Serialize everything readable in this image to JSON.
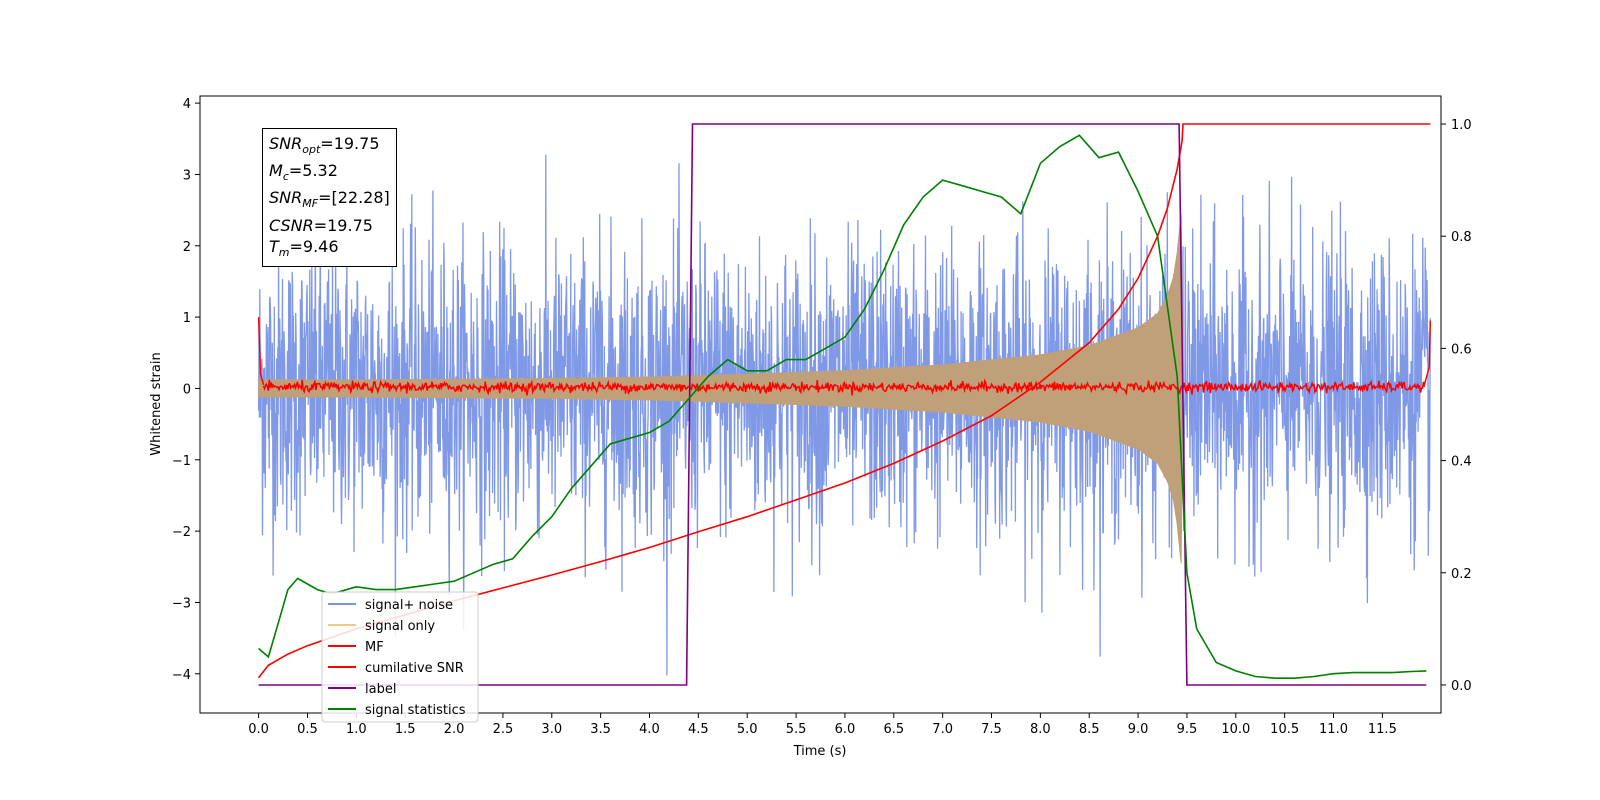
{
  "chart_data": {
    "type": "line",
    "xlabel": "Time (s)",
    "ylabel": "Whitened strain",
    "xlim": [
      -0.6,
      12.1
    ],
    "ylim": [
      -4.55,
      4.1
    ],
    "y2lim": [
      -0.05,
      1.05
    ],
    "x_ticks": [
      "0.0",
      "0.5",
      "1.0",
      "1.5",
      "2.0",
      "2.5",
      "3.0",
      "3.5",
      "4.0",
      "4.5",
      "5.0",
      "5.5",
      "6.0",
      "6.5",
      "7.0",
      "7.5",
      "8.0",
      "8.5",
      "9.0",
      "9.5",
      "10.0",
      "10.5",
      "11.0",
      "11.5"
    ],
    "y_ticks": [
      "4",
      "3",
      "2",
      "1",
      "0",
      "−1",
      "−2",
      "−3",
      "−4"
    ],
    "y2_ticks": [
      "1.0",
      "0.8",
      "0.6",
      "0.4",
      "0.2",
      "0.0"
    ],
    "annotations": {
      "snr_opt": {
        "sym": "SNR",
        "sub": "opt",
        "val": "=19.75"
      },
      "mc": {
        "sym": "M",
        "sub": "c",
        "val": "=5.32"
      },
      "snr_mf": {
        "sym": "SNR",
        "sub": "MF",
        "val": "=[22.28]"
      },
      "csnr": {
        "sym": "CSNR",
        "sub": "",
        "val": "=19.75"
      },
      "tm": {
        "sym": "T",
        "sub": "m",
        "val": "=9.46"
      }
    },
    "legend": {
      "placement": "lower-left",
      "entries": [
        {
          "label": "signal+ noise",
          "color": "#7994e6"
        },
        {
          "label": "signal only",
          "color": "#f5c785"
        },
        {
          "label": "MF",
          "color": "#ff0000"
        },
        {
          "label": "cumilative SNR",
          "color": "#ff0000"
        },
        {
          "label": "label",
          "color": "#800080"
        },
        {
          "label": "signal statistics",
          "color": "#008000"
        }
      ]
    },
    "series": [
      {
        "name": "signal+ noise",
        "color": "#7994e6",
        "axis": "left",
        "x_range": [
          0.0,
          11.99
        ],
        "envelope_std": 1.0
      },
      {
        "name": "signal only",
        "color": "#c0a078",
        "axis": "left",
        "chirp_end": 9.46,
        "envelope": [
          [
            0.0,
            0.12
          ],
          [
            1.0,
            0.12
          ],
          [
            2.0,
            0.13
          ],
          [
            3.0,
            0.14
          ],
          [
            4.0,
            0.16
          ],
          [
            5.0,
            0.2
          ],
          [
            6.0,
            0.25
          ],
          [
            7.0,
            0.33
          ],
          [
            8.0,
            0.47
          ],
          [
            8.5,
            0.6
          ],
          [
            9.0,
            0.85
          ],
          [
            9.2,
            1.05
          ],
          [
            9.3,
            1.3
          ],
          [
            9.36,
            1.55
          ],
          [
            9.4,
            1.9
          ],
          [
            9.44,
            2.45
          ]
        ]
      },
      {
        "name": "MF",
        "color": "#ff0000",
        "axis": "left",
        "x": [
          0.0,
          0.02,
          0.05,
          11.93,
          11.98,
          11.99
        ],
        "y": [
          1.0,
          0.2,
          0.05,
          0.05,
          0.3,
          0.95
        ]
      },
      {
        "name": "cumilative SNR",
        "color": "#ff0000",
        "axis": "right",
        "x": [
          0.0,
          0.1,
          0.3,
          0.5,
          1.0,
          1.5,
          2.0,
          2.5,
          3.0,
          3.5,
          4.0,
          4.5,
          5.0,
          5.5,
          6.0,
          6.5,
          7.0,
          7.5,
          8.0,
          8.5,
          8.8,
          9.0,
          9.2,
          9.3,
          9.4,
          9.45,
          9.46,
          11.99
        ],
        "y": [
          0.013,
          0.035,
          0.055,
          0.07,
          0.1,
          0.125,
          0.15,
          0.173,
          0.196,
          0.22,
          0.245,
          0.273,
          0.3,
          0.33,
          0.36,
          0.395,
          0.435,
          0.48,
          0.54,
          0.61,
          0.67,
          0.725,
          0.8,
          0.85,
          0.92,
          0.97,
          1.0,
          1.0
        ]
      },
      {
        "name": "label",
        "color": "#800080",
        "axis": "right",
        "x": [
          0.0,
          4.38,
          4.44,
          9.42,
          9.5,
          11.95
        ],
        "y": [
          0.0,
          0.0,
          1.0,
          1.0,
          0.0,
          0.0
        ]
      },
      {
        "name": "signal statistics",
        "color": "#008000",
        "axis": "right",
        "x": [
          0.0,
          0.1,
          0.2,
          0.3,
          0.4,
          0.5,
          0.6,
          0.7,
          0.8,
          1.0,
          1.2,
          1.4,
          1.6,
          1.8,
          2.0,
          2.2,
          2.4,
          2.6,
          2.8,
          3.0,
          3.2,
          3.4,
          3.6,
          3.8,
          4.0,
          4.2,
          4.4,
          4.6,
          4.8,
          5.0,
          5.2,
          5.4,
          5.6,
          5.8,
          6.0,
          6.2,
          6.4,
          6.6,
          6.8,
          7.0,
          7.2,
          7.4,
          7.6,
          7.8,
          8.0,
          8.2,
          8.4,
          8.6,
          8.8,
          9.0,
          9.2,
          9.4,
          9.5,
          9.6,
          9.8,
          10.0,
          10.2,
          10.4,
          10.6,
          10.8,
          11.0,
          11.2,
          11.4,
          11.6,
          11.8,
          11.95
        ],
        "y": [
          0.065,
          0.05,
          0.11,
          0.17,
          0.19,
          0.18,
          0.17,
          0.165,
          0.165,
          0.175,
          0.17,
          0.17,
          0.175,
          0.18,
          0.185,
          0.2,
          0.215,
          0.225,
          0.265,
          0.3,
          0.35,
          0.39,
          0.43,
          0.44,
          0.45,
          0.47,
          0.51,
          0.55,
          0.58,
          0.56,
          0.56,
          0.58,
          0.58,
          0.6,
          0.62,
          0.67,
          0.74,
          0.82,
          0.87,
          0.9,
          0.89,
          0.88,
          0.87,
          0.84,
          0.93,
          0.96,
          0.98,
          0.94,
          0.95,
          0.88,
          0.8,
          0.55,
          0.2,
          0.1,
          0.04,
          0.025,
          0.015,
          0.012,
          0.012,
          0.015,
          0.02,
          0.022,
          0.022,
          0.022,
          0.024,
          0.025
        ]
      }
    ]
  }
}
